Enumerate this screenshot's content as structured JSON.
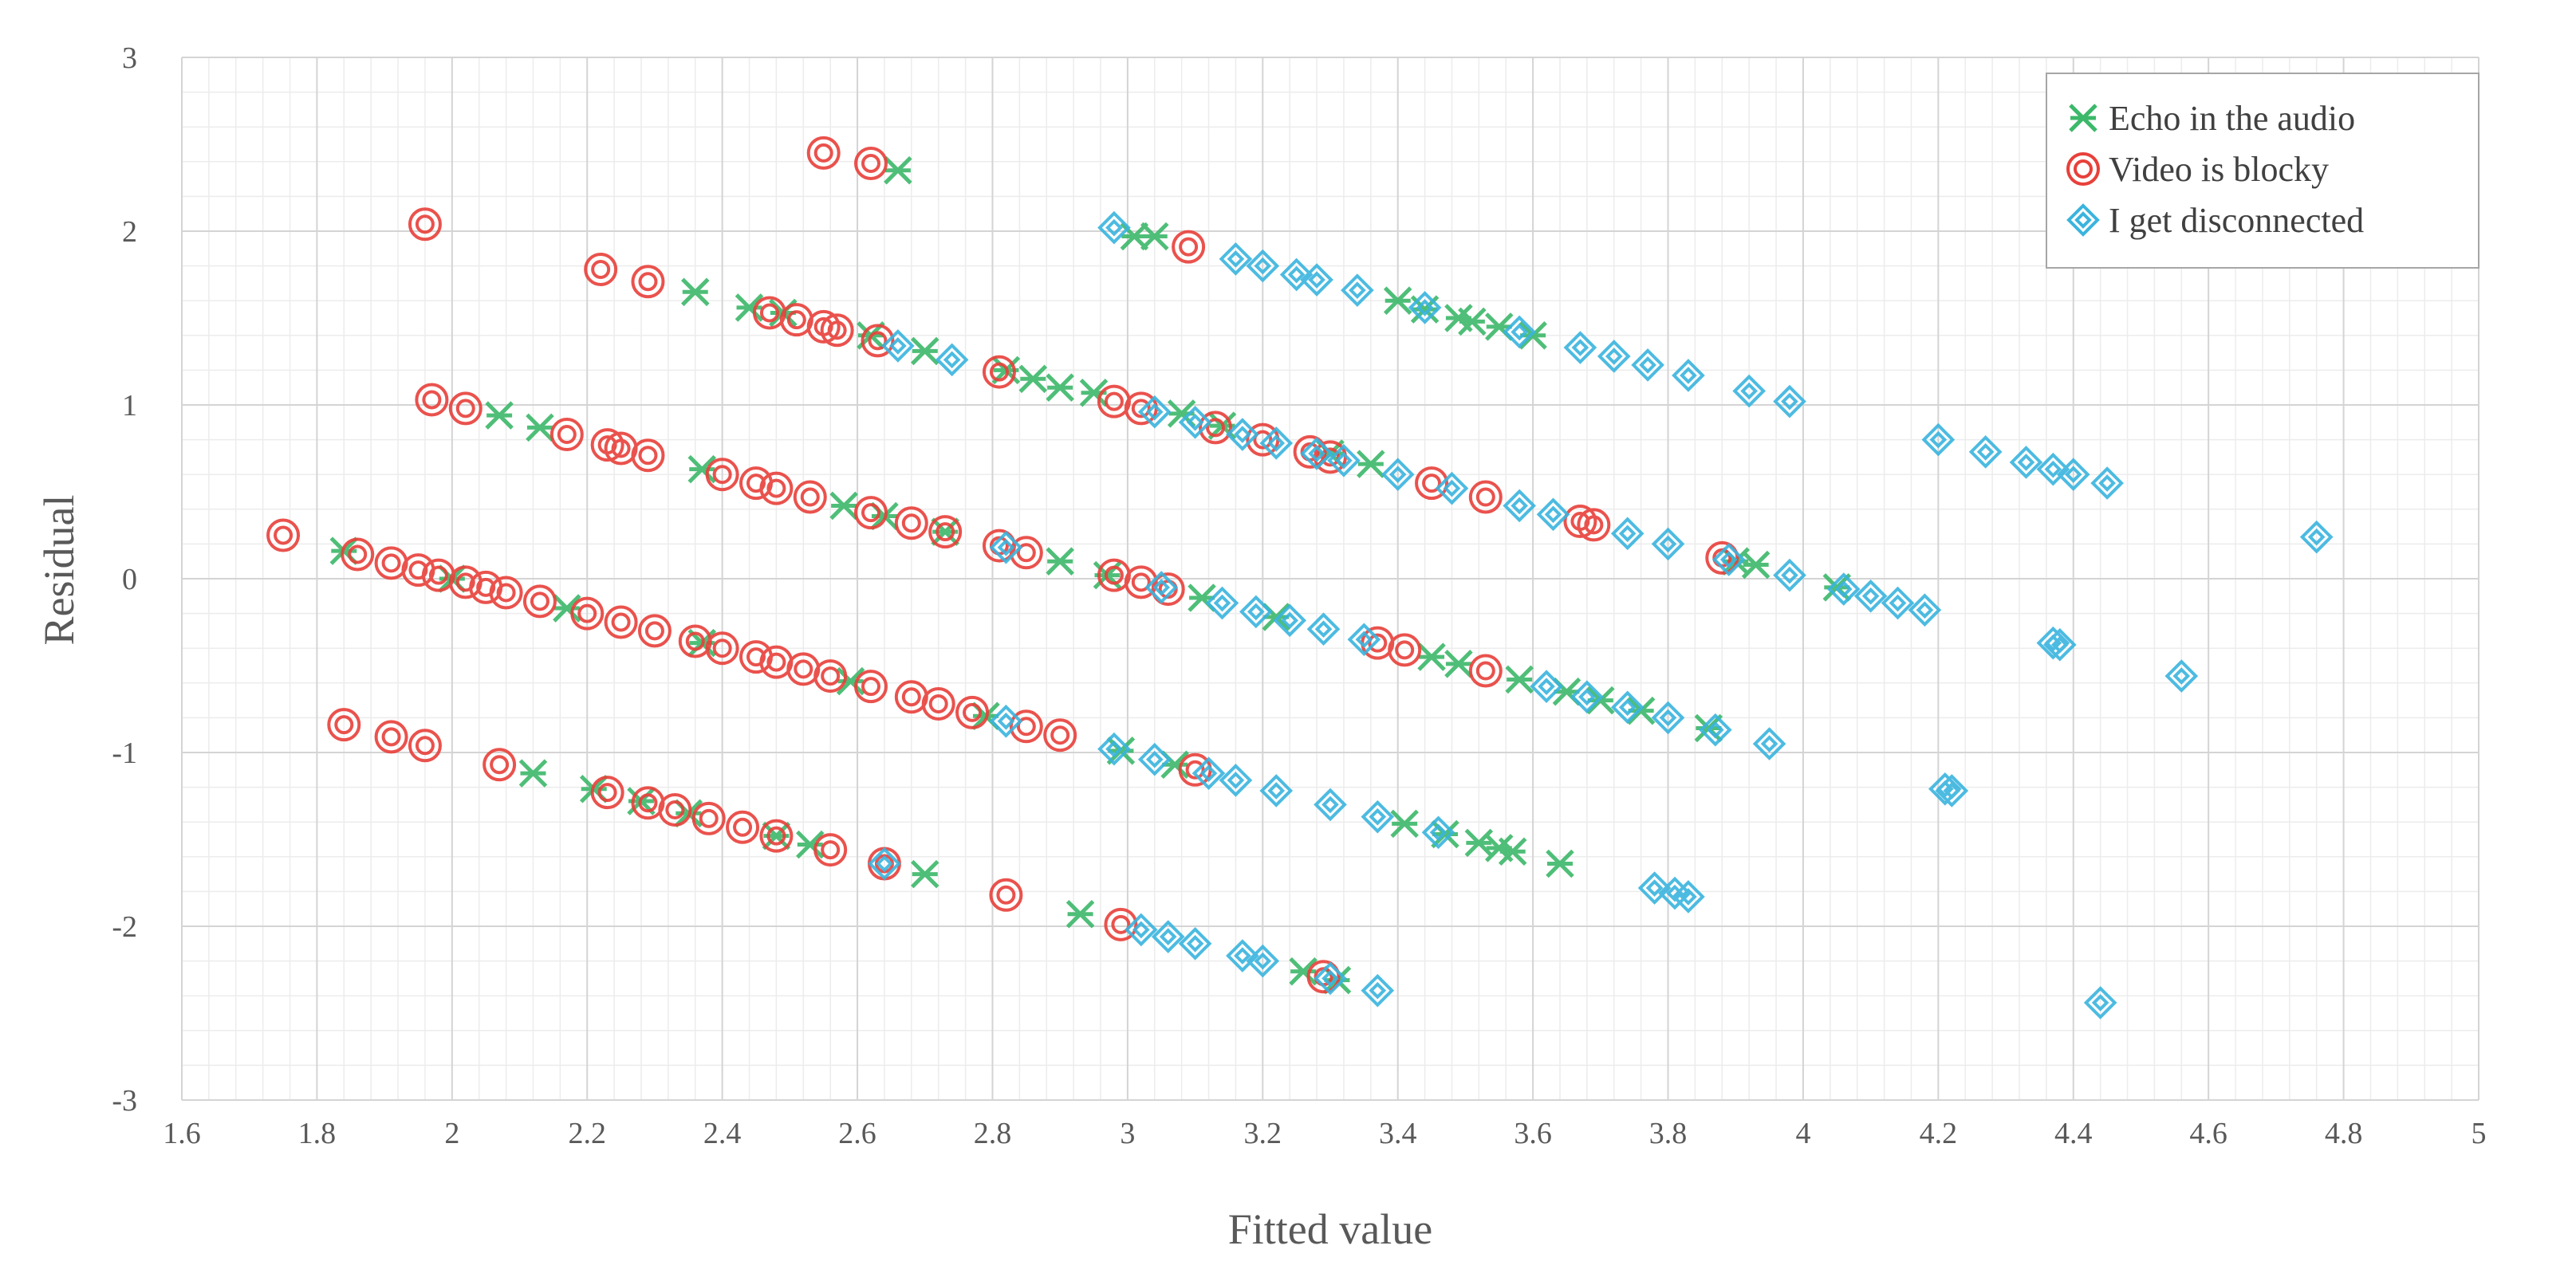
{
  "chart_data": {
    "type": "scatter",
    "title": "",
    "xlabel": "Fitted value",
    "ylabel": "Residual",
    "xlim": [
      1.6,
      5
    ],
    "ylim": [
      -3,
      3
    ],
    "grid": true,
    "legend_position": "top-right",
    "x_ticks": [
      "1.6",
      "1.8",
      "2",
      "2.2",
      "2.4",
      "2.6",
      "2.8",
      "3",
      "3.2",
      "3.4",
      "3.6",
      "3.8",
      "4",
      "4.2",
      "4.4",
      "4.6",
      "4.8",
      "5"
    ],
    "y_ticks": [
      "3",
      "2",
      "1",
      "0",
      "-1",
      "-2",
      "-3"
    ],
    "series": [
      {
        "name": "Echo in the audio",
        "color": "#3cb86a",
        "marker": "x-star",
        "points": [
          [
            2.66,
            2.35
          ],
          [
            3.01,
            1.97
          ],
          [
            3.04,
            1.97
          ],
          [
            2.36,
            1.65
          ],
          [
            2.44,
            1.56
          ],
          [
            2.49,
            1.53
          ],
          [
            2.62,
            1.4
          ],
          [
            2.7,
            1.31
          ],
          [
            2.82,
            1.2
          ],
          [
            2.86,
            1.15
          ],
          [
            2.9,
            1.1
          ],
          [
            2.95,
            1.07
          ],
          [
            3.08,
            0.95
          ],
          [
            3.14,
            0.88
          ],
          [
            3.3,
            0.72
          ],
          [
            3.36,
            0.66
          ],
          [
            3.4,
            1.6
          ],
          [
            3.44,
            1.55
          ],
          [
            3.49,
            1.5
          ],
          [
            3.51,
            1.48
          ],
          [
            3.55,
            1.45
          ],
          [
            3.6,
            1.4
          ],
          [
            2.07,
            0.94
          ],
          [
            2.13,
            0.87
          ],
          [
            2.37,
            0.63
          ],
          [
            2.58,
            0.42
          ],
          [
            2.64,
            0.36
          ],
          [
            2.73,
            0.27
          ],
          [
            2.9,
            0.1
          ],
          [
            2.97,
            0.02
          ],
          [
            3.11,
            -0.11
          ],
          [
            3.22,
            -0.22
          ],
          [
            3.45,
            -0.45
          ],
          [
            3.49,
            -0.49
          ],
          [
            3.58,
            -0.58
          ],
          [
            3.65,
            -0.65
          ],
          [
            3.7,
            -0.7
          ],
          [
            3.76,
            -0.76
          ],
          [
            3.86,
            -0.86
          ],
          [
            3.9,
            0.1
          ],
          [
            3.93,
            0.08
          ],
          [
            4.05,
            -0.05
          ],
          [
            1.84,
            0.16
          ],
          [
            2.0,
            0.0
          ],
          [
            2.17,
            -0.17
          ],
          [
            2.37,
            -0.37
          ],
          [
            2.59,
            -0.59
          ],
          [
            2.79,
            -0.79
          ],
          [
            2.99,
            -0.99
          ],
          [
            3.07,
            -1.07
          ],
          [
            3.41,
            -1.41
          ],
          [
            3.47,
            -1.47
          ],
          [
            3.52,
            -1.52
          ],
          [
            3.55,
            -1.55
          ],
          [
            3.57,
            -1.57
          ],
          [
            3.64,
            -1.64
          ],
          [
            2.12,
            -1.12
          ],
          [
            2.21,
            -1.21
          ],
          [
            2.28,
            -1.28
          ],
          [
            2.35,
            -1.35
          ],
          [
            2.48,
            -1.48
          ],
          [
            2.53,
            -1.53
          ],
          [
            2.7,
            -1.7
          ],
          [
            2.93,
            -1.93
          ],
          [
            3.26,
            -2.26
          ],
          [
            3.31,
            -2.31
          ]
        ]
      },
      {
        "name": "Video is blocky",
        "color": "#e8403a",
        "marker": "double-circle",
        "points": [
          [
            2.55,
            2.45
          ],
          [
            2.62,
            2.39
          ],
          [
            1.96,
            2.04
          ],
          [
            2.22,
            1.78
          ],
          [
            2.29,
            1.71
          ],
          [
            3.09,
            1.91
          ],
          [
            2.47,
            1.53
          ],
          [
            2.51,
            1.49
          ],
          [
            2.55,
            1.45
          ],
          [
            2.57,
            1.43
          ],
          [
            2.63,
            1.37
          ],
          [
            2.81,
            1.19
          ],
          [
            2.98,
            1.02
          ],
          [
            3.02,
            0.98
          ],
          [
            3.13,
            0.87
          ],
          [
            3.2,
            0.8
          ],
          [
            3.27,
            0.73
          ],
          [
            3.3,
            0.7
          ],
          [
            3.45,
            0.55
          ],
          [
            3.53,
            0.47
          ],
          [
            3.67,
            0.33
          ],
          [
            3.69,
            0.31
          ],
          [
            1.97,
            1.03
          ],
          [
            2.02,
            0.98
          ],
          [
            2.17,
            0.83
          ],
          [
            2.23,
            0.77
          ],
          [
            2.25,
            0.75
          ],
          [
            2.29,
            0.71
          ],
          [
            2.4,
            0.6
          ],
          [
            2.45,
            0.55
          ],
          [
            2.48,
            0.52
          ],
          [
            2.53,
            0.47
          ],
          [
            2.62,
            0.38
          ],
          [
            2.68,
            0.32
          ],
          [
            2.73,
            0.27
          ],
          [
            2.81,
            0.19
          ],
          [
            2.85,
            0.15
          ],
          [
            1.75,
            0.25
          ],
          [
            1.86,
            0.14
          ],
          [
            1.91,
            0.09
          ],
          [
            1.95,
            0.05
          ],
          [
            1.98,
            0.02
          ],
          [
            2.02,
            -0.02
          ],
          [
            2.05,
            -0.05
          ],
          [
            2.08,
            -0.08
          ],
          [
            2.13,
            -0.13
          ],
          [
            2.2,
            -0.2
          ],
          [
            2.25,
            -0.25
          ],
          [
            2.3,
            -0.3
          ],
          [
            2.36,
            -0.36
          ],
          [
            2.4,
            -0.4
          ],
          [
            2.45,
            -0.45
          ],
          [
            2.48,
            -0.48
          ],
          [
            2.52,
            -0.52
          ],
          [
            2.56,
            -0.56
          ],
          [
            2.62,
            -0.62
          ],
          [
            2.68,
            -0.68
          ],
          [
            2.72,
            -0.72
          ],
          [
            2.77,
            -0.77
          ],
          [
            2.85,
            -0.85
          ],
          [
            2.9,
            -0.9
          ],
          [
            2.98,
            0.02
          ],
          [
            3.02,
            -0.02
          ],
          [
            3.06,
            -0.06
          ],
          [
            3.37,
            -0.37
          ],
          [
            3.41,
            -0.41
          ],
          [
            3.53,
            -0.53
          ],
          [
            3.88,
            0.12
          ],
          [
            3.1,
            -1.1
          ],
          [
            1.84,
            -0.84
          ],
          [
            1.91,
            -0.91
          ],
          [
            1.96,
            -0.96
          ],
          [
            2.07,
            -1.07
          ],
          [
            2.23,
            -1.23
          ],
          [
            2.29,
            -1.29
          ],
          [
            2.33,
            -1.33
          ],
          [
            2.38,
            -1.38
          ],
          [
            2.43,
            -1.43
          ],
          [
            2.48,
            -1.48
          ],
          [
            2.56,
            -1.56
          ],
          [
            2.64,
            -1.64
          ],
          [
            2.82,
            -1.82
          ],
          [
            2.99,
            -1.99
          ],
          [
            3.29,
            -2.29
          ]
        ]
      },
      {
        "name": "I get disconnected",
        "color": "#3ab4de",
        "marker": "diamond",
        "points": [
          [
            2.98,
            2.02
          ],
          [
            3.16,
            1.84
          ],
          [
            3.2,
            1.8
          ],
          [
            3.25,
            1.75
          ],
          [
            3.28,
            1.72
          ],
          [
            3.34,
            1.66
          ],
          [
            3.44,
            1.56
          ],
          [
            3.58,
            1.42
          ],
          [
            3.67,
            1.33
          ],
          [
            3.72,
            1.28
          ],
          [
            3.77,
            1.23
          ],
          [
            3.83,
            1.17
          ],
          [
            3.92,
            1.08
          ],
          [
            3.98,
            1.02
          ],
          [
            2.66,
            1.34
          ],
          [
            2.74,
            1.26
          ],
          [
            3.04,
            0.96
          ],
          [
            3.1,
            0.9
          ],
          [
            3.17,
            0.83
          ],
          [
            3.22,
            0.78
          ],
          [
            3.28,
            0.72
          ],
          [
            3.32,
            0.68
          ],
          [
            3.4,
            0.6
          ],
          [
            3.48,
            0.52
          ],
          [
            3.58,
            0.42
          ],
          [
            3.63,
            0.37
          ],
          [
            3.74,
            0.26
          ],
          [
            3.8,
            0.2
          ],
          [
            3.89,
            0.11
          ],
          [
            3.98,
            0.02
          ],
          [
            4.2,
            0.8
          ],
          [
            4.27,
            0.73
          ],
          [
            4.33,
            0.67
          ],
          [
            4.37,
            0.63
          ],
          [
            4.4,
            0.6
          ],
          [
            4.45,
            0.55
          ],
          [
            4.76,
            0.24
          ],
          [
            4.1,
            -0.1
          ],
          [
            4.14,
            -0.14
          ],
          [
            4.18,
            -0.18
          ],
          [
            4.06,
            -0.06
          ],
          [
            2.82,
            0.18
          ],
          [
            3.05,
            -0.05
          ],
          [
            3.14,
            -0.14
          ],
          [
            3.19,
            -0.19
          ],
          [
            3.24,
            -0.24
          ],
          [
            3.29,
            -0.29
          ],
          [
            3.35,
            -0.35
          ],
          [
            3.62,
            -0.62
          ],
          [
            3.68,
            -0.68
          ],
          [
            3.74,
            -0.74
          ],
          [
            3.8,
            -0.8
          ],
          [
            3.87,
            -0.87
          ],
          [
            3.95,
            -0.95
          ],
          [
            4.37,
            -0.37
          ],
          [
            4.38,
            -0.38
          ],
          [
            4.56,
            -0.56
          ],
          [
            2.82,
            -0.82
          ],
          [
            2.98,
            -0.98
          ],
          [
            3.04,
            -1.04
          ],
          [
            3.12,
            -1.12
          ],
          [
            3.16,
            -1.16
          ],
          [
            3.22,
            -1.22
          ],
          [
            3.3,
            -1.3
          ],
          [
            3.37,
            -1.37
          ],
          [
            3.46,
            -1.46
          ],
          [
            4.21,
            -1.21
          ],
          [
            4.22,
            -1.22
          ],
          [
            2.64,
            -1.64
          ],
          [
            3.78,
            -1.78
          ],
          [
            3.81,
            -1.81
          ],
          [
            3.83,
            -1.83
          ],
          [
            3.02,
            -2.02
          ],
          [
            3.06,
            -2.06
          ],
          [
            3.1,
            -2.1
          ],
          [
            3.17,
            -2.17
          ],
          [
            3.2,
            -2.2
          ],
          [
            3.3,
            -2.3
          ],
          [
            3.37,
            -2.37
          ],
          [
            4.44,
            -2.44
          ]
        ]
      }
    ]
  }
}
